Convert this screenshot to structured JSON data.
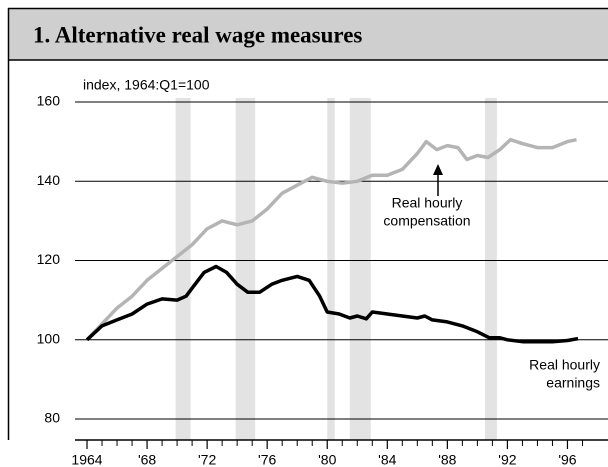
{
  "chart_data": {
    "type": "line",
    "title": "1. Alternative real wage measures",
    "subtitle": "index, 1964:Q1=100",
    "xlim": [
      1963.2,
      1998.7
    ],
    "ylim": [
      74.7,
      170.1
    ],
    "yticks": [
      80,
      100,
      120,
      140,
      160
    ],
    "xticks": [
      {
        "value": 1964,
        "label": "1964"
      },
      {
        "value": 1968,
        "label": "'68"
      },
      {
        "value": 1972,
        "label": "'72"
      },
      {
        "value": 1976,
        "label": "'76"
      },
      {
        "value": 1980,
        "label": "'80"
      },
      {
        "value": 1984,
        "label": "'84"
      },
      {
        "value": 1988,
        "label": "'88"
      },
      {
        "value": 1992,
        "label": "'92"
      },
      {
        "value": 1996,
        "label": "'96"
      }
    ],
    "xminorticks": [
      1965,
      1966,
      1967,
      1969,
      1970,
      1971,
      1973,
      1974,
      1975,
      1977,
      1978,
      1979,
      1981,
      1982,
      1983,
      1985,
      1986,
      1987,
      1989,
      1990,
      1991,
      1993,
      1994,
      1995,
      1997
    ],
    "grid": true,
    "shaded_periods": [
      [
        1969.9,
        1970.9
      ],
      [
        1973.9,
        1975.2
      ],
      [
        1980.0,
        1980.5
      ],
      [
        1981.5,
        1982.9
      ],
      [
        1990.5,
        1991.3
      ]
    ],
    "shade_color": "#e3e3e3",
    "series": [
      {
        "name": [
          "Real hourly",
          "compensation"
        ],
        "color": "#b4b4b4",
        "x": [
          1964,
          1965,
          1966,
          1967,
          1968,
          1969,
          1970,
          1971,
          1972,
          1973,
          1974,
          1975,
          1976,
          1977,
          1978,
          1979,
          1980,
          1981,
          1982,
          1983,
          1984,
          1985,
          1986,
          1986.6,
          1987.3,
          1988,
          1988.7,
          1989.3,
          1990,
          1990.7,
          1991.5,
          1992.2,
          1993,
          1994,
          1995,
          1996,
          1996.6
        ],
        "values": [
          100,
          104,
          108,
          111,
          115,
          118,
          121,
          124,
          128,
          130,
          129,
          130,
          133,
          137,
          139,
          141,
          140,
          139.5,
          140,
          141.5,
          141.5,
          143,
          147,
          150,
          148,
          149,
          148.5,
          145.5,
          146.5,
          146,
          148,
          150.5,
          149.5,
          148.5,
          148.5,
          150,
          150.5
        ]
      },
      {
        "name": [
          "Real hourly",
          "earnings"
        ],
        "color": "#000000",
        "x": [
          1964,
          1965,
          1966,
          1967,
          1968,
          1969,
          1970,
          1970.6,
          1971,
          1971.8,
          1972.6,
          1973.3,
          1974,
          1974.7,
          1975.5,
          1976.3,
          1977,
          1978,
          1978.8,
          1979.5,
          1980,
          1980.8,
          1981.5,
          1982,
          1982.6,
          1983,
          1984,
          1985,
          1986,
          1986.5,
          1987,
          1988,
          1989,
          1990,
          1990.8,
          1991.5,
          1992,
          1993,
          1994,
          1995,
          1996,
          1996.7
        ],
        "values": [
          100,
          103.5,
          105,
          106.5,
          109,
          110.3,
          110,
          111,
          113,
          117,
          118.5,
          117,
          114,
          112,
          112,
          114,
          115,
          116,
          115,
          111,
          107,
          106.5,
          105.5,
          106,
          105.3,
          107,
          106.5,
          106,
          105.5,
          106,
          105,
          104.5,
          103.5,
          102,
          100.5,
          100.5,
          100,
          99.5,
          99.5,
          99.5,
          99.8,
          100.3
        ]
      }
    ]
  }
}
